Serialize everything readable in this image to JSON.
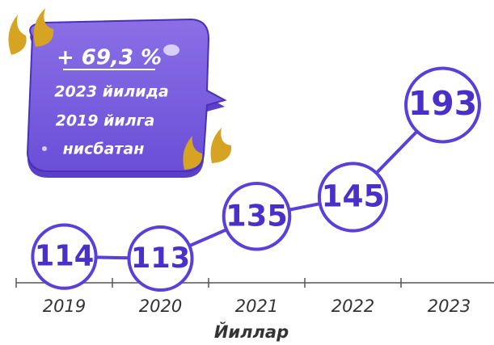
{
  "chart_data": {
    "type": "line",
    "x_label": "Йиллар",
    "categories": [
      "2019",
      "2020",
      "2021",
      "2022",
      "2023"
    ],
    "values": [
      114,
      113,
      135,
      145,
      193
    ],
    "color": "#5a3fd8",
    "annotation": {
      "change": "+ 69,3 %",
      "lines": [
        "2023 йилида",
        "2019 йилга",
        "нисбатан"
      ]
    }
  }
}
